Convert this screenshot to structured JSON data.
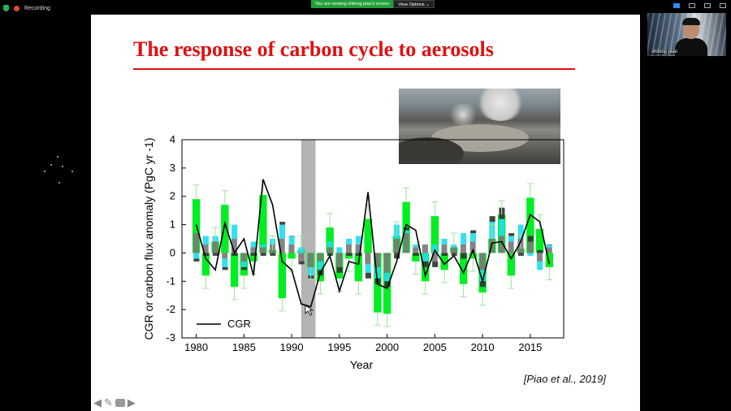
{
  "meeting": {
    "recording_label": "Recording",
    "share_banner": "You are viewing shilong piao's screen",
    "view_options_label": "View Options ⌄"
  },
  "participant": {
    "name": "shilong piao"
  },
  "slide": {
    "title": "The response of carbon cycle to aerosols",
    "citation": "[Piao et al., 2019]",
    "image_alt": "volcano-eruption-photo"
  },
  "chart_data": {
    "type": "bar",
    "title": "",
    "xlabel": "Year",
    "ylabel": "CGR or carbon flux anomaly (PgC yr -1)",
    "xlim": [
      1978.5,
      2018.5
    ],
    "ylim": [
      -3,
      4
    ],
    "xticks": [
      1980,
      1985,
      1990,
      1995,
      2000,
      2005,
      2010,
      2015
    ],
    "yticks": [
      -3,
      -2,
      -1,
      0,
      1,
      2,
      3,
      4
    ],
    "grid": false,
    "legend": {
      "position": "bottom-left",
      "entries": [
        "CGR"
      ]
    },
    "highlight_span": [
      1991,
      1992.5
    ],
    "x": [
      1980,
      1981,
      1982,
      1983,
      1984,
      1985,
      1986,
      1987,
      1988,
      1989,
      1990,
      1991,
      1992,
      1993,
      1994,
      1995,
      1996,
      1997,
      1998,
      1999,
      2000,
      2001,
      2002,
      2003,
      2004,
      2005,
      2006,
      2007,
      2008,
      2009,
      2010,
      2011,
      2012,
      2013,
      2014,
      2015,
      2016,
      2017
    ],
    "series": [
      {
        "name": "CGR",
        "values": [
          1.0,
          -0.2,
          -0.6,
          1.05,
          0.0,
          0.5,
          -0.8,
          2.6,
          1.7,
          -0.3,
          -0.6,
          -1.8,
          -1.9,
          -0.7,
          -0.1,
          -1.35,
          -0.3,
          -0.4,
          2.15,
          -1.1,
          -1.25,
          -0.3,
          1.0,
          0.8,
          -0.8,
          0.1,
          -0.4,
          -0.1,
          -0.7,
          0.1,
          -1.0,
          0.35,
          0.4,
          -0.2,
          0.4,
          1.35,
          1.1,
          -0.4
        ],
        "color": "#000000"
      },
      {
        "values": [
          1.9,
          -0.8,
          0.4,
          1.7,
          -1.2,
          -0.8,
          -0.3,
          2.05,
          0.1,
          -1.6,
          -0.2,
          0.1,
          -0.5,
          -1.0,
          0.9,
          -0.9,
          -0.2,
          -1.0,
          1.2,
          -2.1,
          -2.15,
          0.6,
          1.8,
          -0.3,
          -1.0,
          1.3,
          -0.6,
          0.2,
          -1.1,
          -0.2,
          -1.4,
          0.5,
          1.35,
          -0.8,
          0.15,
          1.95,
          0.85,
          -0.5
        ],
        "color": "#00ee22"
      },
      {
        "values": [
          0.7,
          0.3,
          0.4,
          -0.2,
          0.5,
          -0.3,
          0.2,
          0.2,
          0.3,
          0.5,
          0.3,
          -0.3,
          -0.5,
          -0.3,
          0.2,
          -0.5,
          0.3,
          0.3,
          -0.4,
          -0.5,
          -0.7,
          0.5,
          0.7,
          0.2,
          0.3,
          -0.3,
          0.3,
          0.2,
          0.3,
          0.4,
          -0.6,
          0.5,
          0.6,
          0.4,
          0.5,
          0.4,
          -0.3,
          0.2
        ],
        "color": "#7a7a7a"
      },
      {
        "values": [
          -0.2,
          0.3,
          0.2,
          -0.3,
          0.5,
          -0.2,
          0.2,
          0.1,
          0.2,
          0.5,
          0.3,
          0.2,
          -0.3,
          -0.3,
          0.2,
          0.2,
          0.2,
          0.3,
          -0.3,
          -0.4,
          -0.3,
          0.5,
          0.1,
          0.1,
          -0.3,
          0.3,
          0.2,
          0.1,
          0.4,
          0.3,
          -0.4,
          0.6,
          0.6,
          0.2,
          0.5,
          -0.1,
          -0.3,
          0.1
        ],
        "color": "#22ddee"
      },
      {
        "values": [
          -0.1,
          -0.1,
          -0.1,
          -0.1,
          -0.1,
          -0.1,
          -0.1,
          -0.1,
          -0.1,
          0.1,
          0.0,
          -0.1,
          -0.1,
          -0.2,
          -0.1,
          -0.2,
          -0.1,
          -0.1,
          -0.2,
          -0.2,
          -0.2,
          -0.2,
          0.1,
          -0.1,
          -0.2,
          -0.2,
          -0.1,
          -0.1,
          -0.2,
          0.1,
          -0.2,
          0.2,
          0.4,
          0.1,
          -0.1,
          0.2,
          0.1,
          0.0
        ],
        "color": "#333333"
      }
    ]
  }
}
